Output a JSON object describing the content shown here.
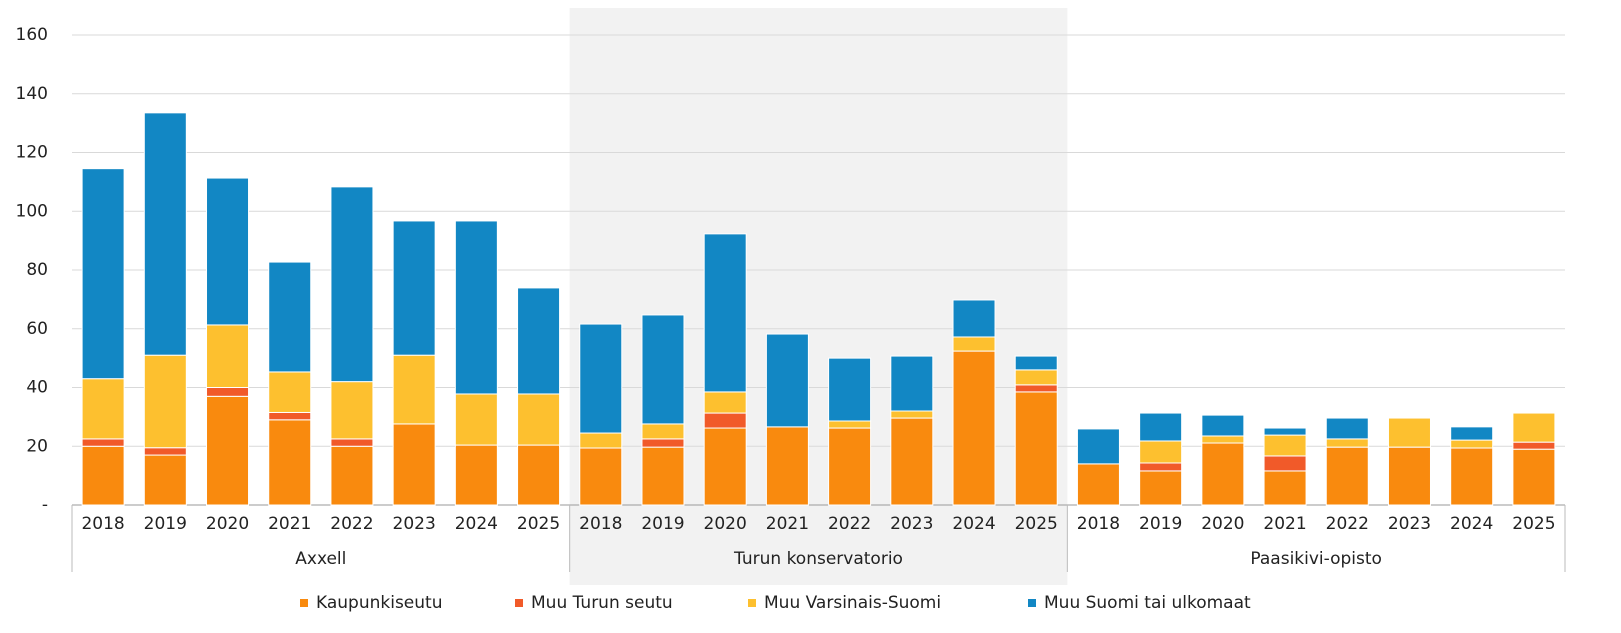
{
  "chart_data": {
    "type": "stacked_bar",
    "categories": [
      "2018",
      "2019",
      "2020",
      "2021",
      "2022",
      "2023",
      "2024",
      "2025",
      "2018",
      "2019",
      "2020",
      "2021",
      "2022",
      "2023",
      "2024",
      "2025",
      "2018",
      "2019",
      "2020",
      "2021",
      "2022",
      "2023",
      "2024",
      "2025"
    ],
    "groups": [
      "Axxell",
      "Turun konservatorio",
      "Paasikivi-opisto"
    ],
    "series": [
      {
        "name": "Kaupunkiseutu",
        "color": "#f98a0e",
        "values": [
          20,
          17,
          37,
          29,
          20,
          27.6,
          20.4,
          20.4,
          19.4,
          19.7,
          26.2,
          26.6,
          26.2,
          29.6,
          52.4,
          38.5,
          14,
          11.6,
          21.1,
          11.6,
          19.7,
          19.7,
          19.4,
          19
        ]
      },
      {
        "name": "Muu Turun seutu",
        "color": "#f15a29",
        "values": [
          2.5,
          2.5,
          3,
          2.5,
          2.5,
          0,
          0,
          0,
          0,
          2.8,
          5.1,
          0,
          0,
          0,
          0,
          2.4,
          0,
          2.7,
          0,
          5.1,
          0,
          0,
          0,
          2.4
        ]
      },
      {
        "name": "Muu Varsinais-Suomi",
        "color": "#fdc02f",
        "values": [
          20.5,
          31.5,
          21.3,
          13.8,
          19.5,
          23.4,
          17.4,
          17.4,
          5.1,
          5.1,
          7.2,
          0,
          2.4,
          2.4,
          4.8,
          5.1,
          0,
          7.5,
          2.4,
          7.1,
          2.8,
          9.9,
          2.7,
          9.9
        ]
      },
      {
        "name": "Muu Suomi tai ulkomaat",
        "color": "#1287c4",
        "values": [
          71.5,
          82.5,
          50,
          37.4,
          66.3,
          45.7,
          58.9,
          36.1,
          37.1,
          37.1,
          53.8,
          31.6,
          21.4,
          18.7,
          12.6,
          4.7,
          11.9,
          9.5,
          7.1,
          2.4,
          7.1,
          0,
          4.5,
          0
        ]
      }
    ],
    "ylim": [
      0,
      160
    ],
    "yticks": [
      {
        "value": 0,
        "label": "-"
      },
      20,
      40,
      60,
      80,
      100,
      120,
      140,
      160
    ],
    "grid": true,
    "highlight_group": 1,
    "legend": "bottom"
  }
}
